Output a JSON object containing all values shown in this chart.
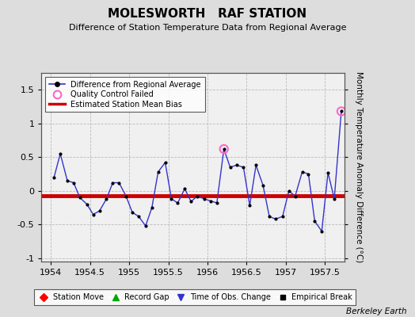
{
  "title": "MOLESWORTH   RAF STATION",
  "subtitle": "Difference of Station Temperature Data from Regional Average",
  "ylabel": "Monthly Temperature Anomaly Difference (°C)",
  "xlim": [
    1953.88,
    1957.75
  ],
  "ylim": [
    -1.05,
    1.75
  ],
  "yticks": [
    -1.0,
    -0.5,
    0.0,
    0.5,
    1.0,
    1.5
  ],
  "xticks": [
    1954,
    1954.5,
    1955,
    1955.5,
    1956,
    1956.5,
    1957,
    1957.5
  ],
  "xtick_labels": [
    "1954",
    "1954.5",
    "1955",
    "1955.5",
    "1956",
    "1956.5",
    "1957",
    "1957.5"
  ],
  "bias_y": -0.07,
  "line_color": "#3333cc",
  "bias_color": "#cc0000",
  "bg_color": "#dddddd",
  "plot_bg_color": "#f0f0f0",
  "qc_color": "#ff66cc",
  "watermark": "Berkeley Earth",
  "x": [
    1954.04,
    1954.12,
    1954.21,
    1954.29,
    1954.37,
    1954.46,
    1954.54,
    1954.62,
    1954.71,
    1954.79,
    1954.87,
    1954.96,
    1955.04,
    1955.12,
    1955.21,
    1955.29,
    1955.37,
    1955.46,
    1955.54,
    1955.62,
    1955.71,
    1955.79,
    1955.87,
    1955.96,
    1956.04,
    1956.12,
    1956.21,
    1956.29,
    1956.37,
    1956.46,
    1956.54,
    1956.62,
    1956.71,
    1956.79,
    1956.87,
    1956.96,
    1957.04,
    1957.12,
    1957.21,
    1957.29,
    1957.37,
    1957.46,
    1957.54,
    1957.62,
    1957.71
  ],
  "y": [
    0.2,
    0.55,
    0.15,
    0.12,
    -0.1,
    -0.2,
    -0.35,
    -0.3,
    -0.12,
    0.12,
    0.12,
    -0.08,
    -0.32,
    -0.38,
    -0.52,
    -0.25,
    0.28,
    0.42,
    -0.12,
    -0.18,
    0.03,
    -0.16,
    -0.08,
    -0.12,
    -0.15,
    -0.18,
    0.62,
    0.35,
    0.38,
    0.35,
    -0.22,
    0.38,
    0.08,
    -0.38,
    -0.42,
    -0.38,
    0.0,
    -0.08,
    0.28,
    0.25,
    -0.45,
    -0.6,
    0.27,
    -0.12,
    1.18
  ],
  "qc_indices": [
    26,
    44
  ]
}
